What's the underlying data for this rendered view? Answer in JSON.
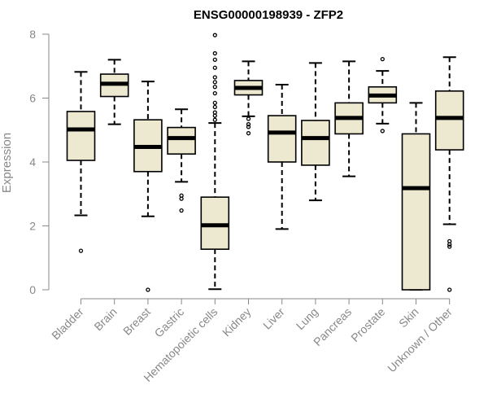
{
  "chart_data": {
    "type": "boxplot",
    "title": "ENSG00000198939 - ZFP2",
    "xlabel": "",
    "ylabel": "Expression",
    "ylim": [
      0,
      8
    ],
    "yticks": [
      0,
      2,
      4,
      6,
      8
    ],
    "colors": {
      "box_fill": "#ede8d0",
      "stroke": "#000000",
      "axis": "#888888",
      "label": "#888888",
      "title": "#000000"
    },
    "categories": [
      "Bladder",
      "Brain",
      "Breast",
      "Gastric",
      "Hematopoietic cells",
      "Kidney",
      "Liver",
      "Lung",
      "Pancreas",
      "Prostate",
      "Skin",
      "Unknown / Other"
    ],
    "boxes": [
      {
        "q1": 4.05,
        "median": 5.02,
        "q3": 5.58,
        "whisker_low": 2.33,
        "whisker_high": 6.82,
        "outliers": [
          1.22
        ]
      },
      {
        "q1": 6.05,
        "median": 6.45,
        "q3": 6.75,
        "whisker_low": 5.18,
        "whisker_high": 7.2,
        "outliers": []
      },
      {
        "q1": 3.7,
        "median": 4.47,
        "q3": 5.32,
        "whisker_low": 2.3,
        "whisker_high": 6.52,
        "outliers": [
          0.0
        ]
      },
      {
        "q1": 4.25,
        "median": 4.75,
        "q3": 5.08,
        "whisker_low": 3.38,
        "whisker_high": 5.65,
        "outliers": [
          2.95,
          2.85,
          2.48
        ]
      },
      {
        "q1": 1.27,
        "median": 2.02,
        "q3": 2.9,
        "whisker_low": 0.02,
        "whisker_high": 5.22,
        "outliers": [
          7.97,
          7.4,
          7.2,
          6.95,
          6.65,
          6.5,
          6.35,
          6.15,
          5.85,
          5.72,
          5.55,
          5.45,
          5.32
        ]
      },
      {
        "q1": 6.1,
        "median": 6.32,
        "q3": 6.55,
        "whisker_low": 5.43,
        "whisker_high": 7.15,
        "outliers": [
          5.35,
          5.18,
          5.1,
          4.9
        ]
      },
      {
        "q1": 4.0,
        "median": 4.92,
        "q3": 5.45,
        "whisker_low": 1.9,
        "whisker_high": 6.42,
        "outliers": []
      },
      {
        "q1": 3.9,
        "median": 4.75,
        "q3": 5.3,
        "whisker_low": 2.8,
        "whisker_high": 7.1,
        "outliers": []
      },
      {
        "q1": 4.88,
        "median": 5.38,
        "q3": 5.85,
        "whisker_low": 3.55,
        "whisker_high": 7.15,
        "outliers": []
      },
      {
        "q1": 5.85,
        "median": 6.08,
        "q3": 6.35,
        "whisker_low": 5.2,
        "whisker_high": 6.85,
        "outliers": [
          7.22,
          4.97
        ]
      },
      {
        "q1": 0.0,
        "median": 3.18,
        "q3": 4.88,
        "whisker_low": 0.0,
        "whisker_high": 5.85,
        "outliers": []
      },
      {
        "q1": 4.38,
        "median": 5.38,
        "q3": 6.22,
        "whisker_low": 2.05,
        "whisker_high": 7.28,
        "outliers": [
          1.52,
          1.42,
          1.35,
          0.0
        ]
      }
    ]
  }
}
